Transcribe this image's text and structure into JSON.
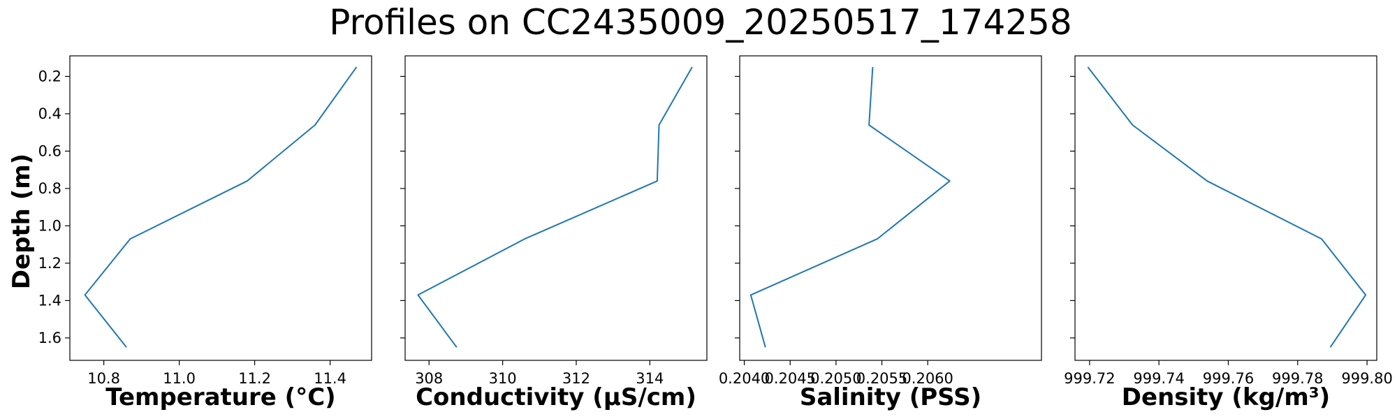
{
  "figure": {
    "title": "Profiles on CC2435009_20250517_174258",
    "y_label": "Depth (m)",
    "line_color": "#1f77b4"
  },
  "chart_data": [
    {
      "type": "line",
      "xlabel": "Temperature (°C)",
      "ylabel": "Depth (m)",
      "xlim": [
        10.71,
        11.51
      ],
      "ylim": [
        1.72,
        0.09
      ],
      "y_inverted": true,
      "xticks": [
        10.8,
        11.0,
        11.2,
        11.4
      ],
      "xtick_labels": [
        "10.8",
        "11.0",
        "11.2",
        "11.4"
      ],
      "yticks": [
        0.2,
        0.4,
        0.6,
        0.8,
        1.0,
        1.2,
        1.4,
        1.6
      ],
      "ytick_labels": [
        "0.2",
        "0.4",
        "0.6",
        "0.8",
        "1.0",
        "1.2",
        "1.4",
        "1.6"
      ],
      "grid": false,
      "x": [
        11.47,
        11.36,
        11.18,
        10.87,
        10.75,
        10.86
      ],
      "y": [
        0.15,
        0.46,
        0.76,
        1.07,
        1.37,
        1.65
      ]
    },
    {
      "type": "line",
      "xlabel": "Conductivity (µS/cm)",
      "ylabel": "Depth (m)",
      "xlim": [
        307.35,
        315.55
      ],
      "ylim": [
        1.72,
        0.09
      ],
      "y_inverted": true,
      "xticks": [
        308,
        310,
        312,
        314
      ],
      "xtick_labels": [
        "308",
        "310",
        "312",
        "314"
      ],
      "yticks": [
        0.2,
        0.4,
        0.6,
        0.8,
        1.0,
        1.2,
        1.4,
        1.6
      ],
      "ytick_labels": [],
      "grid": false,
      "x": [
        315.15,
        314.25,
        314.2,
        310.6,
        307.7,
        308.75
      ],
      "y": [
        0.15,
        0.46,
        0.76,
        1.07,
        1.37,
        1.65
      ]
    },
    {
      "type": "line",
      "xlabel": "Salinity (PSS)",
      "ylabel": "Depth (m)",
      "xlim": [
        0.20395,
        0.20724
      ],
      "ylim": [
        1.72,
        0.09
      ],
      "y_inverted": true,
      "xticks": [
        0.204,
        0.2045,
        0.205,
        0.2055,
        0.206
      ],
      "xtick_labels": [
        "0.2040",
        "0.2045",
        "0.2050",
        "0.2055",
        "0.2060"
      ],
      "yticks": [
        0.2,
        0.4,
        0.6,
        0.8,
        1.0,
        1.2,
        1.4,
        1.6
      ],
      "ytick_labels": [],
      "grid": false,
      "x": [
        0.2054,
        0.20536,
        0.20624,
        0.20545,
        0.20407,
        0.20423
      ],
      "y": [
        0.15,
        0.46,
        0.76,
        1.07,
        1.37,
        1.65
      ]
    },
    {
      "type": "line",
      "xlabel": "Density (kg/m³)",
      "ylabel": "Depth (m)",
      "xlim": [
        999.7158,
        999.8028
      ],
      "ylim": [
        1.72,
        0.09
      ],
      "y_inverted": true,
      "xticks": [
        999.72,
        999.74,
        999.76,
        999.78,
        999.8
      ],
      "xtick_labels": [
        "999.72",
        "999.74",
        "999.76",
        "999.78",
        "999.80"
      ],
      "yticks": [
        0.2,
        0.4,
        0.6,
        0.8,
        1.0,
        1.2,
        1.4,
        1.6
      ],
      "ytick_labels": [],
      "grid": false,
      "x": [
        999.7195,
        999.7324,
        999.7539,
        999.7869,
        999.7996,
        999.7894
      ],
      "y": [
        0.15,
        0.46,
        0.76,
        1.07,
        1.37,
        1.65
      ]
    }
  ]
}
